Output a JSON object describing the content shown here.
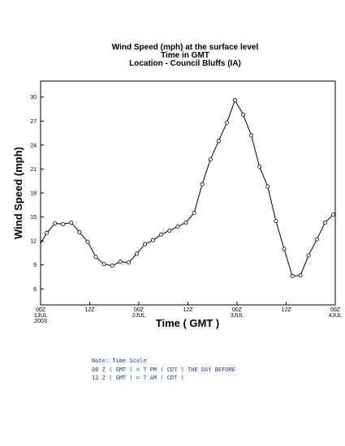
{
  "chart_data": {
    "type": "line",
    "title_lines": [
      "Wind Speed (mph) at the surface level",
      "Time in GMT",
      "Location - Council Bluffs (IA)"
    ],
    "xlabel": "Time ( GMT )",
    "ylabel": "Wind Speed (mph)",
    "ylim": [
      4,
      32
    ],
    "yticks": [
      6,
      9,
      12,
      15,
      18,
      21,
      24,
      27,
      30
    ],
    "xlim": [
      0,
      72
    ],
    "xticks": [
      {
        "x": 0,
        "lines": [
          "00Z",
          "1JUL",
          "2003"
        ]
      },
      {
        "x": 12,
        "lines": [
          "12Z"
        ]
      },
      {
        "x": 24,
        "lines": [
          "00Z",
          "2JUL"
        ]
      },
      {
        "x": 36,
        "lines": [
          "12Z"
        ]
      },
      {
        "x": 48,
        "lines": [
          "00Z",
          "3JUL"
        ]
      },
      {
        "x": 60,
        "lines": [
          "12Z"
        ]
      },
      {
        "x": 72,
        "lines": [
          "00Z",
          "4JUL"
        ]
      }
    ],
    "grid": false,
    "series": [
      {
        "x": [
          0,
          1.5,
          3.5,
          5.5,
          7.5,
          9.5,
          11.5,
          13.5,
          15.5,
          17.5,
          19.5,
          21.5,
          23.5,
          25.5,
          27.5,
          29.5,
          31.5,
          33.5,
          35.5,
          37.5,
          39.5,
          41.5,
          43.5,
          45.5,
          47.5,
          49.5,
          51.5,
          53.5,
          55.5,
          57.5,
          59.5,
          61.5,
          63.5,
          65.5,
          67.5,
          69.5,
          71.5,
          72
        ],
        "values": [
          11.7,
          13.0,
          14.2,
          14.1,
          14.3,
          13.1,
          11.9,
          10.0,
          9.1,
          8.9,
          9.4,
          9.3,
          10.4,
          11.6,
          12.1,
          12.8,
          13.3,
          13.8,
          14.3,
          15.5,
          19.1,
          22.2,
          24.5,
          26.8,
          29.6,
          27.8,
          25.2,
          21.3,
          18.8,
          14.5,
          11.0,
          7.6,
          7.7,
          10.2,
          12.2,
          14.3,
          15.3,
          15.5
        ]
      }
    ]
  },
  "note": {
    "line1": "Note: Time Scale",
    "line2": "00 Z ( GMT ) = 7 PM ( CDT ) THE DAY BEFORE",
    "line3": "12 Z ( GMT ) = 7 AM ( CDT )"
  }
}
